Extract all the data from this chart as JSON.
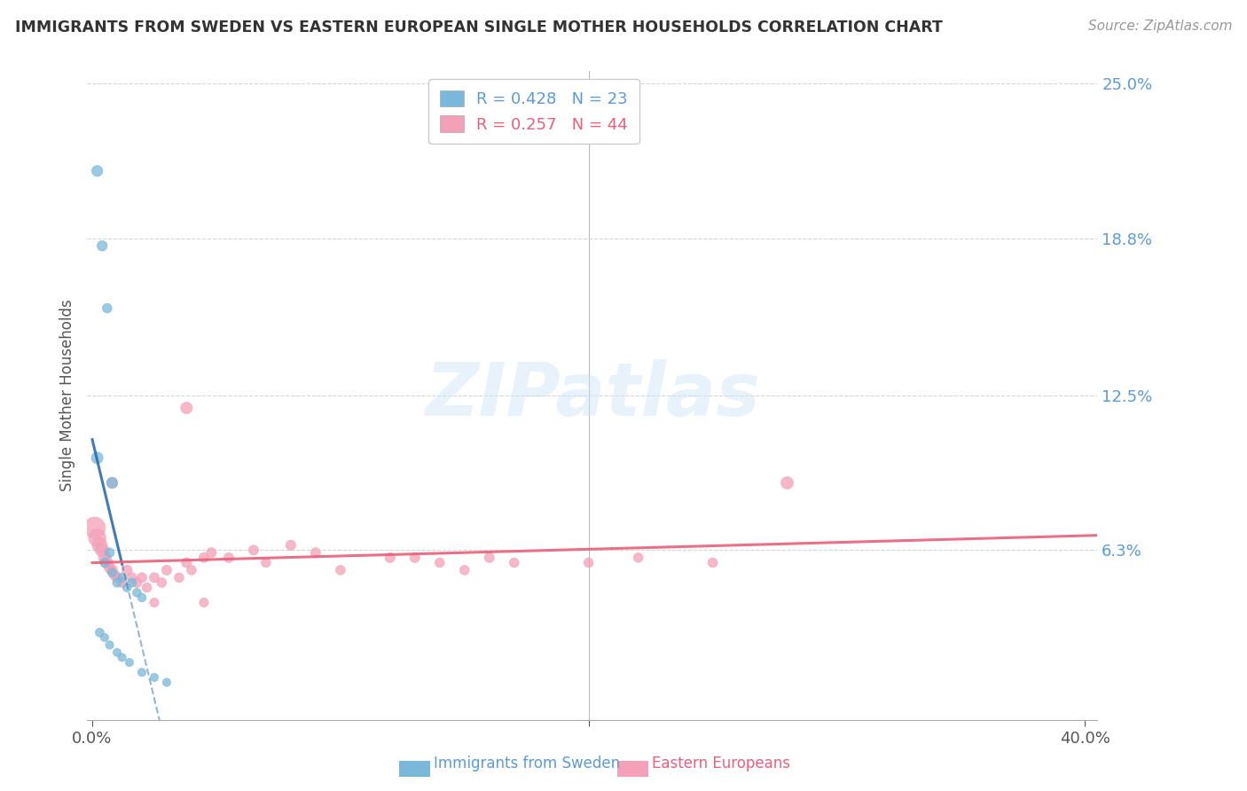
{
  "title": "IMMIGRANTS FROM SWEDEN VS EASTERN EUROPEAN SINGLE MOTHER HOUSEHOLDS CORRELATION CHART",
  "source": "Source: ZipAtlas.com",
  "ylabel": "Single Mother Households",
  "xlim": [
    -0.002,
    0.405
  ],
  "ylim": [
    -0.005,
    0.255
  ],
  "ytick_vals": [
    0.063,
    0.125,
    0.188,
    0.25
  ],
  "ytick_labels": [
    "6.3%",
    "12.5%",
    "18.8%",
    "25.0%"
  ],
  "xtick_vals": [
    0.0,
    0.2,
    0.4
  ],
  "xtick_labels": [
    "0.0%",
    "",
    "40.0%"
  ],
  "sweden_color": "#7ab8d9",
  "eastern_color": "#f4a0b8",
  "sweden_line_color": "#2b6cb0",
  "eastern_line_color": "#e8607a",
  "legend_label1": "R = 0.428   N = 23",
  "legend_label2": "R = 0.257   N = 44",
  "legend_color1": "#5b9bd5",
  "legend_color2": "#e8607a",
  "watermark_text": "ZIPatlas",
  "sweden_pts": [
    [
      0.002,
      0.215
    ],
    [
      0.004,
      0.185
    ],
    [
      0.006,
      0.16
    ],
    [
      0.002,
      0.1
    ],
    [
      0.008,
      0.09
    ],
    [
      0.005,
      0.058
    ],
    [
      0.007,
      0.062
    ],
    [
      0.008,
      0.054
    ],
    [
      0.01,
      0.05
    ],
    [
      0.012,
      0.052
    ],
    [
      0.014,
      0.048
    ],
    [
      0.016,
      0.05
    ],
    [
      0.018,
      0.046
    ],
    [
      0.02,
      0.044
    ],
    [
      0.003,
      0.03
    ],
    [
      0.005,
      0.028
    ],
    [
      0.007,
      0.025
    ],
    [
      0.01,
      0.022
    ],
    [
      0.012,
      0.02
    ],
    [
      0.015,
      0.018
    ],
    [
      0.02,
      0.014
    ],
    [
      0.025,
      0.012
    ],
    [
      0.03,
      0.01
    ]
  ],
  "sweden_sizes": [
    80,
    70,
    60,
    90,
    80,
    60,
    60,
    55,
    55,
    55,
    50,
    55,
    50,
    50,
    50,
    45,
    45,
    45,
    45,
    45,
    45,
    45,
    45
  ],
  "eastern_pts": [
    [
      0.001,
      0.072
    ],
    [
      0.002,
      0.068
    ],
    [
      0.003,
      0.065
    ],
    [
      0.004,
      0.063
    ],
    [
      0.005,
      0.06
    ],
    [
      0.006,
      0.058
    ],
    [
      0.007,
      0.056
    ],
    [
      0.008,
      0.055
    ],
    [
      0.009,
      0.053
    ],
    [
      0.01,
      0.052
    ],
    [
      0.012,
      0.05
    ],
    [
      0.014,
      0.055
    ],
    [
      0.016,
      0.052
    ],
    [
      0.018,
      0.05
    ],
    [
      0.02,
      0.052
    ],
    [
      0.022,
      0.048
    ],
    [
      0.025,
      0.052
    ],
    [
      0.028,
      0.05
    ],
    [
      0.03,
      0.055
    ],
    [
      0.035,
      0.052
    ],
    [
      0.038,
      0.058
    ],
    [
      0.04,
      0.055
    ],
    [
      0.045,
      0.06
    ],
    [
      0.048,
      0.062
    ],
    [
      0.055,
      0.06
    ],
    [
      0.065,
      0.063
    ],
    [
      0.07,
      0.058
    ],
    [
      0.08,
      0.065
    ],
    [
      0.09,
      0.062
    ],
    [
      0.1,
      0.055
    ],
    [
      0.12,
      0.06
    ],
    [
      0.13,
      0.06
    ],
    [
      0.14,
      0.058
    ],
    [
      0.15,
      0.055
    ],
    [
      0.16,
      0.06
    ],
    [
      0.17,
      0.058
    ],
    [
      0.2,
      0.058
    ],
    [
      0.22,
      0.06
    ],
    [
      0.25,
      0.058
    ],
    [
      0.008,
      0.09
    ],
    [
      0.038,
      0.12
    ],
    [
      0.025,
      0.042
    ],
    [
      0.045,
      0.042
    ],
    [
      0.28,
      0.09
    ]
  ],
  "eastern_sizes": [
    300,
    200,
    150,
    120,
    100,
    90,
    80,
    75,
    70,
    70,
    65,
    70,
    65,
    65,
    65,
    60,
    65,
    60,
    65,
    60,
    65,
    60,
    65,
    65,
    65,
    65,
    60,
    65,
    65,
    60,
    65,
    65,
    60,
    60,
    65,
    60,
    60,
    60,
    60,
    80,
    90,
    55,
    55,
    100
  ]
}
